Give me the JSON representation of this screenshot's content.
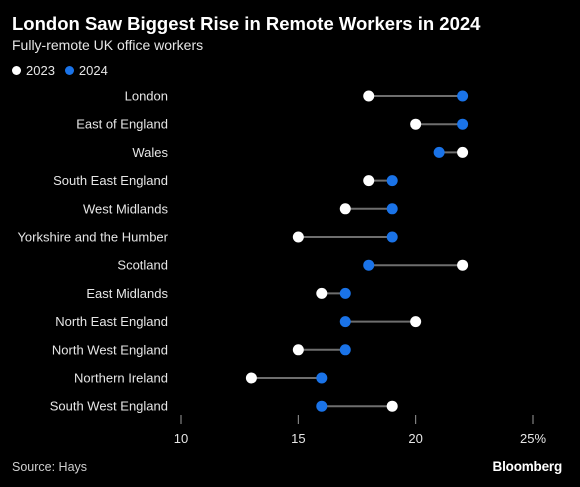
{
  "title": "London Saw Biggest Rise in Remote Workers in 2024",
  "subtitle": "Fully-remote UK office workers",
  "source": "Source: Hays",
  "brand": "Bloomberg",
  "colors": {
    "2023": "#ffffff",
    "2024": "#1a73e8",
    "connector": "#6e6e6e",
    "background": "#000000"
  },
  "chart_data": {
    "type": "dumbbell",
    "series": [
      {
        "name": "2023",
        "values": [
          18,
          20,
          22,
          18,
          17,
          15,
          22,
          16,
          20,
          15,
          13,
          19
        ]
      },
      {
        "name": "2024",
        "values": [
          22,
          22,
          21,
          19,
          19,
          19,
          18,
          17,
          17,
          17,
          16,
          16
        ]
      }
    ],
    "categories": [
      "London",
      "East of England",
      "Wales",
      "South East England",
      "West Midlands",
      "Yorkshire and the Humber",
      "Scotland",
      "East Midlands",
      "North East England",
      "North West England",
      "Northern Ireland",
      "South West England"
    ],
    "xlim": [
      10,
      25
    ],
    "xticks": [
      10,
      15,
      20,
      25
    ],
    "xtick_labels": [
      "10",
      "15",
      "20",
      "25%"
    ],
    "grid": false,
    "legend_position": "top-left"
  }
}
